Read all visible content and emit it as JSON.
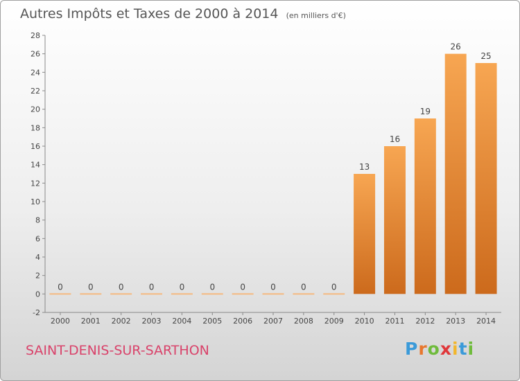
{
  "title": "Autres Impôts et Taxes de 2000 à 2014",
  "unit": "(en milliers d'€)",
  "town": "SAINT-DENIS-SUR-SARTHON",
  "logo": {
    "letters": [
      "P",
      "r",
      "o",
      "x",
      "i",
      "t",
      "i"
    ],
    "colors": [
      "#3a9ad9",
      "#e8772e",
      "#6fbb3c",
      "#e0373a",
      "#f2b62c",
      "#3a9ad9",
      "#6fbb3c"
    ]
  },
  "chart_data": {
    "type": "bar",
    "title": "Autres Impôts et Taxes de 2000 à 2014",
    "subtitle": "(en milliers d'€)",
    "categories": [
      "2000",
      "2001",
      "2002",
      "2003",
      "2004",
      "2005",
      "2006",
      "2007",
      "2008",
      "2009",
      "2010",
      "2011",
      "2012",
      "2013",
      "2014"
    ],
    "values": [
      0,
      0,
      0,
      0,
      0,
      0,
      0,
      0,
      0,
      0,
      13,
      16,
      19,
      26,
      25
    ],
    "data_labels": [
      "0",
      "0",
      "0",
      "0",
      "0",
      "0",
      "0",
      "0",
      "0",
      "0",
      "13",
      "16",
      "19",
      "26",
      "25"
    ],
    "yticks": [
      -2,
      0,
      2,
      4,
      6,
      8,
      10,
      12,
      14,
      16,
      18,
      20,
      22,
      24,
      26,
      28
    ],
    "ylim": [
      -2,
      28
    ],
    "grid": false,
    "bar_color": "#f0913a",
    "zero_bar_color": "#f5b97f"
  }
}
